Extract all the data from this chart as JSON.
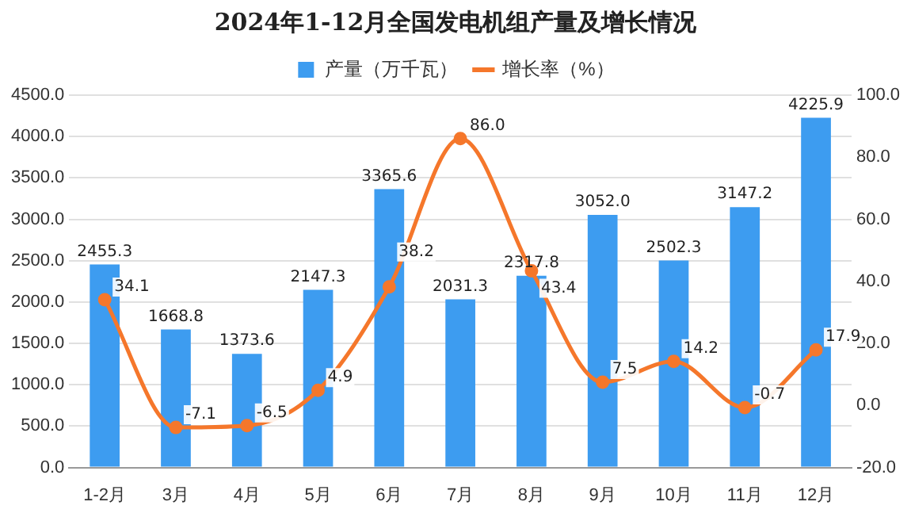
{
  "chart_data": {
    "type": "bar",
    "title": "2024年1-12月全国发电机组产量及增长情况",
    "categories": [
      "1-2月",
      "3月",
      "4月",
      "5月",
      "6月",
      "7月",
      "8月",
      "9月",
      "10月",
      "11月",
      "12月"
    ],
    "series": [
      {
        "name": "产量（万千瓦）",
        "color": "#3d9cf0",
        "values": [
          2455.3,
          1668.8,
          1373.6,
          2147.3,
          3365.6,
          2031.3,
          2317.8,
          3052.0,
          2502.3,
          3147.2,
          4225.9
        ],
        "value_labels": [
          "2455.3",
          "1668.8",
          "1373.6",
          "2147.3",
          "3365.6",
          "2031.3",
          "2317.8",
          "3052.0",
          "2502.3",
          "3147.2",
          "4225.9"
        ]
      },
      {
        "name": "增长率（%）",
        "type": "line",
        "axis": "y2",
        "color": "#f5772b",
        "values": [
          34.1,
          -7.1,
          -6.5,
          4.9,
          38.2,
          86.0,
          43.4,
          7.5,
          14.2,
          -0.7,
          17.9
        ],
        "value_labels": [
          "34.1",
          "-7.1",
          "-6.5",
          "4.9",
          "38.2",
          "86.0",
          "43.4",
          "7.5",
          "14.2",
          "-0.7",
          "17.9"
        ]
      }
    ],
    "ylim": [
      0,
      4500
    ],
    "yticks": [
      {
        "value": 0,
        "label": "0.0"
      },
      {
        "value": 500,
        "label": "500.0"
      },
      {
        "value": 1000,
        "label": "1000.0"
      },
      {
        "value": 1500,
        "label": "1500.0"
      },
      {
        "value": 2000,
        "label": "2000.0"
      },
      {
        "value": 2500,
        "label": "2500.0"
      },
      {
        "value": 3000,
        "label": "3000.0"
      },
      {
        "value": 3500,
        "label": "3500.0"
      },
      {
        "value": 4000,
        "label": "4000.0"
      },
      {
        "value": 4500,
        "label": "4500.0"
      }
    ],
    "y2lim": [
      -20,
      100
    ],
    "y2ticks": [
      {
        "value": -20,
        "label": "-20.0"
      },
      {
        "value": 0,
        "label": "0.0"
      },
      {
        "value": 20,
        "label": "20.0"
      },
      {
        "value": 40,
        "label": "40.0"
      },
      {
        "value": 60,
        "label": "60.0"
      },
      {
        "value": 80,
        "label": "80.0"
      },
      {
        "value": 100,
        "label": "100.0"
      }
    ],
    "grid": "y",
    "legend": "top",
    "marker": "circle",
    "line_style": "solid"
  }
}
